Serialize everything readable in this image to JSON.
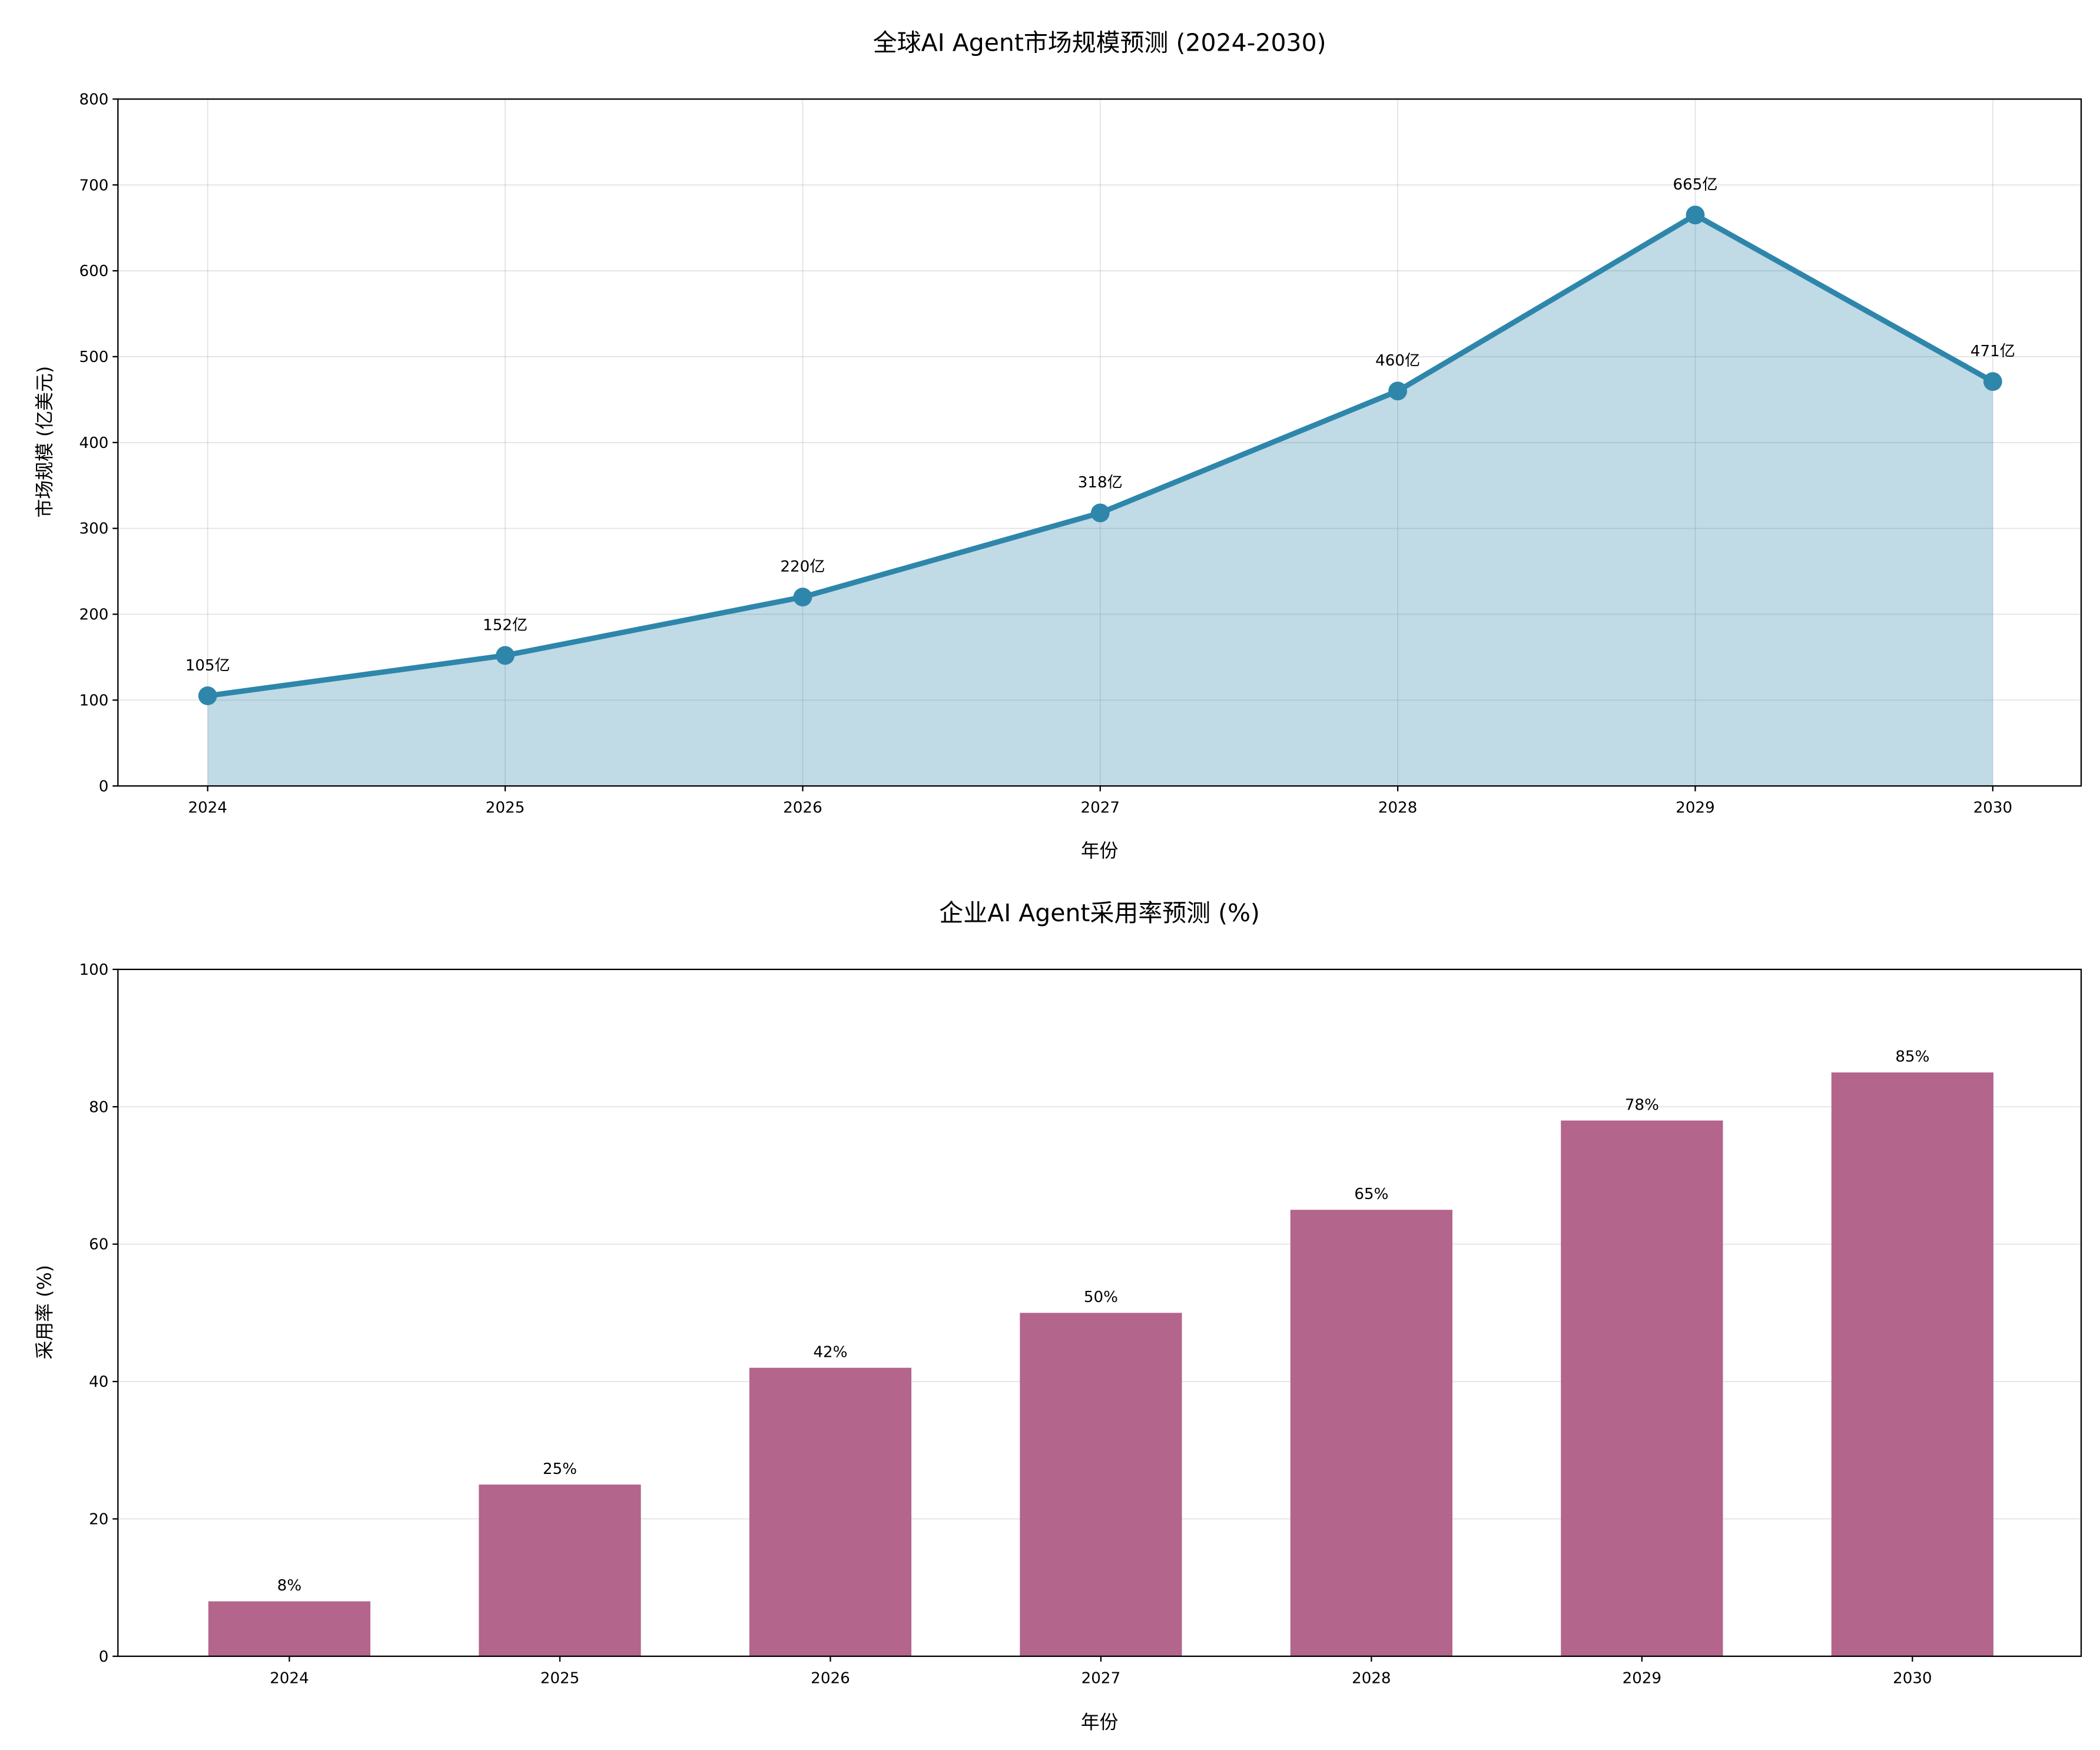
{
  "chart_data": [
    {
      "type": "line",
      "title": "全球AI Agent市场规模预测 (2024-2030)",
      "xlabel": "年份",
      "ylabel": "市场规模 (亿美元)",
      "x": [
        "2024",
        "2025",
        "2026",
        "2027",
        "2028",
        "2029",
        "2030"
      ],
      "values": [
        105,
        152,
        220,
        318,
        460,
        665,
        471
      ],
      "data_labels": [
        "105亿",
        "152亿",
        "220亿",
        "318亿",
        "460亿",
        "665亿",
        "471亿"
      ],
      "ylim": [
        0,
        800
      ],
      "yticks": [
        "0",
        "100",
        "200",
        "300",
        "400",
        "500",
        "600",
        "700",
        "800"
      ],
      "grid": true,
      "filled": true,
      "color": "#2e86ab"
    },
    {
      "type": "bar",
      "title": "企业AI Agent采用率预测 (%)",
      "xlabel": "年份",
      "ylabel": "采用率 (%)",
      "categories": [
        "2024",
        "2025",
        "2026",
        "2027",
        "2028",
        "2029",
        "2030"
      ],
      "values": [
        8,
        25,
        42,
        50,
        65,
        78,
        85
      ],
      "data_labels": [
        "8%",
        "25%",
        "42%",
        "50%",
        "65%",
        "78%",
        "85%"
      ],
      "ylim": [
        0,
        100
      ],
      "yticks": [
        "0",
        "20",
        "40",
        "60",
        "80",
        "100"
      ],
      "grid": true,
      "color": "#b4658c"
    }
  ]
}
